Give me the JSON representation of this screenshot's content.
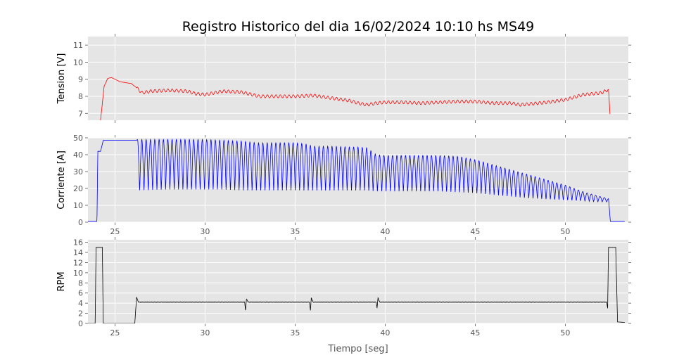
{
  "chart_data": {
    "type": "line",
    "title": "Registro Historico del dia 16/02/2024 10:10 hs MS49",
    "xlabel": "Tiempo [seg]",
    "xlim": [
      23.5,
      53.5
    ],
    "x_ticks": [
      25,
      30,
      35,
      40,
      45,
      50
    ],
    "panels": [
      {
        "name": "tension",
        "ylabel": "Tension [V]",
        "ylim": [
          6.6,
          11.5
        ],
        "y_ticks": [
          7,
          8,
          9,
          10,
          11
        ],
        "color": "#ff0000",
        "grid": true,
        "series": {
          "x": [
            24.2,
            24.4,
            24.6,
            24.8,
            25.0,
            25.3,
            25.6,
            25.9,
            26.2,
            26.5,
            27,
            28,
            29,
            29.5,
            30,
            31,
            32,
            33,
            34,
            35,
            36,
            37,
            38,
            38.5,
            39,
            39.5,
            40,
            41,
            42,
            43,
            44,
            45,
            46,
            47,
            47.5,
            48,
            49,
            50,
            51,
            52,
            52.4,
            52.5
          ],
          "y": [
            6.6,
            8.6,
            9.05,
            9.1,
            9.0,
            8.85,
            8.8,
            8.75,
            8.5,
            8.2,
            8.3,
            8.35,
            8.3,
            8.15,
            8.1,
            8.3,
            8.25,
            8.0,
            8.0,
            8.0,
            8.05,
            7.9,
            7.75,
            7.6,
            7.5,
            7.6,
            7.65,
            7.65,
            7.6,
            7.65,
            7.7,
            7.7,
            7.6,
            7.6,
            7.5,
            7.55,
            7.65,
            7.8,
            8.1,
            8.2,
            8.4,
            6.6
          ]
        }
      },
      {
        "name": "corriente",
        "ylabel": "Corriente [A]",
        "ylim": [
          0,
          50
        ],
        "y_ticks": [
          0,
          10,
          20,
          30,
          40,
          50
        ],
        "color": "#0000ff",
        "grid": true,
        "series": {
          "x": [
            23.5,
            24.0,
            24.05,
            24.2,
            24.35,
            26.2,
            26.25,
            28,
            30,
            31,
            32,
            33,
            34,
            35,
            35.5,
            36,
            37,
            38,
            38.5,
            39,
            39.5,
            40,
            41,
            42,
            43,
            44,
            45,
            46,
            47,
            48,
            49,
            50,
            51,
            52,
            52.4,
            52.5,
            53.3
          ],
          "y_high": [
            0.5,
            0.5,
            42,
            42,
            48.5,
            48.5,
            49,
            49,
            49,
            48.5,
            48,
            47,
            47,
            47,
            46.5,
            45,
            45,
            44.5,
            44.5,
            44,
            40,
            39.5,
            39.5,
            39.5,
            39.5,
            39,
            37,
            34,
            31,
            28,
            25,
            22,
            18,
            15,
            14,
            0.5,
            0.5
          ],
          "y_low": [
            0.5,
            0.5,
            42,
            42,
            48.5,
            48.5,
            18.5,
            19,
            19,
            19,
            18.5,
            18.5,
            18.5,
            18.5,
            18.5,
            18.5,
            18.5,
            18.5,
            18.5,
            18.5,
            18,
            18,
            18,
            18,
            18,
            17.5,
            17,
            16,
            15,
            14,
            13.5,
            13,
            12.5,
            12,
            12,
            0.5,
            0.5
          ],
          "oscillation_period": 0.24
        }
      },
      {
        "name": "rpm",
        "ylabel": "RPM",
        "ylim": [
          0,
          16.5
        ],
        "y_ticks": [
          0,
          2,
          4,
          6,
          8,
          10,
          12,
          14,
          16
        ],
        "color": "#000000",
        "grid": true,
        "series": {
          "x": [
            23.5,
            23.9,
            23.95,
            24.3,
            24.35,
            26.1,
            26.2,
            26.3,
            26.4,
            32.2,
            32.25,
            32.3,
            32.4,
            35.8,
            35.85,
            35.9,
            36.0,
            39.5,
            39.55,
            39.6,
            39.7,
            52.3,
            52.35,
            52.4,
            52.8,
            52.9,
            53.3
          ],
          "y": [
            0,
            0,
            15,
            15,
            0,
            0,
            5.2,
            4.2,
            4.2,
            4.2,
            2.6,
            4.8,
            4.2,
            4.2,
            2.6,
            5.0,
            4.2,
            4.2,
            3.0,
            5.0,
            4.2,
            4.2,
            3.0,
            15,
            15,
            0.3,
            0.2
          ]
        }
      }
    ]
  }
}
